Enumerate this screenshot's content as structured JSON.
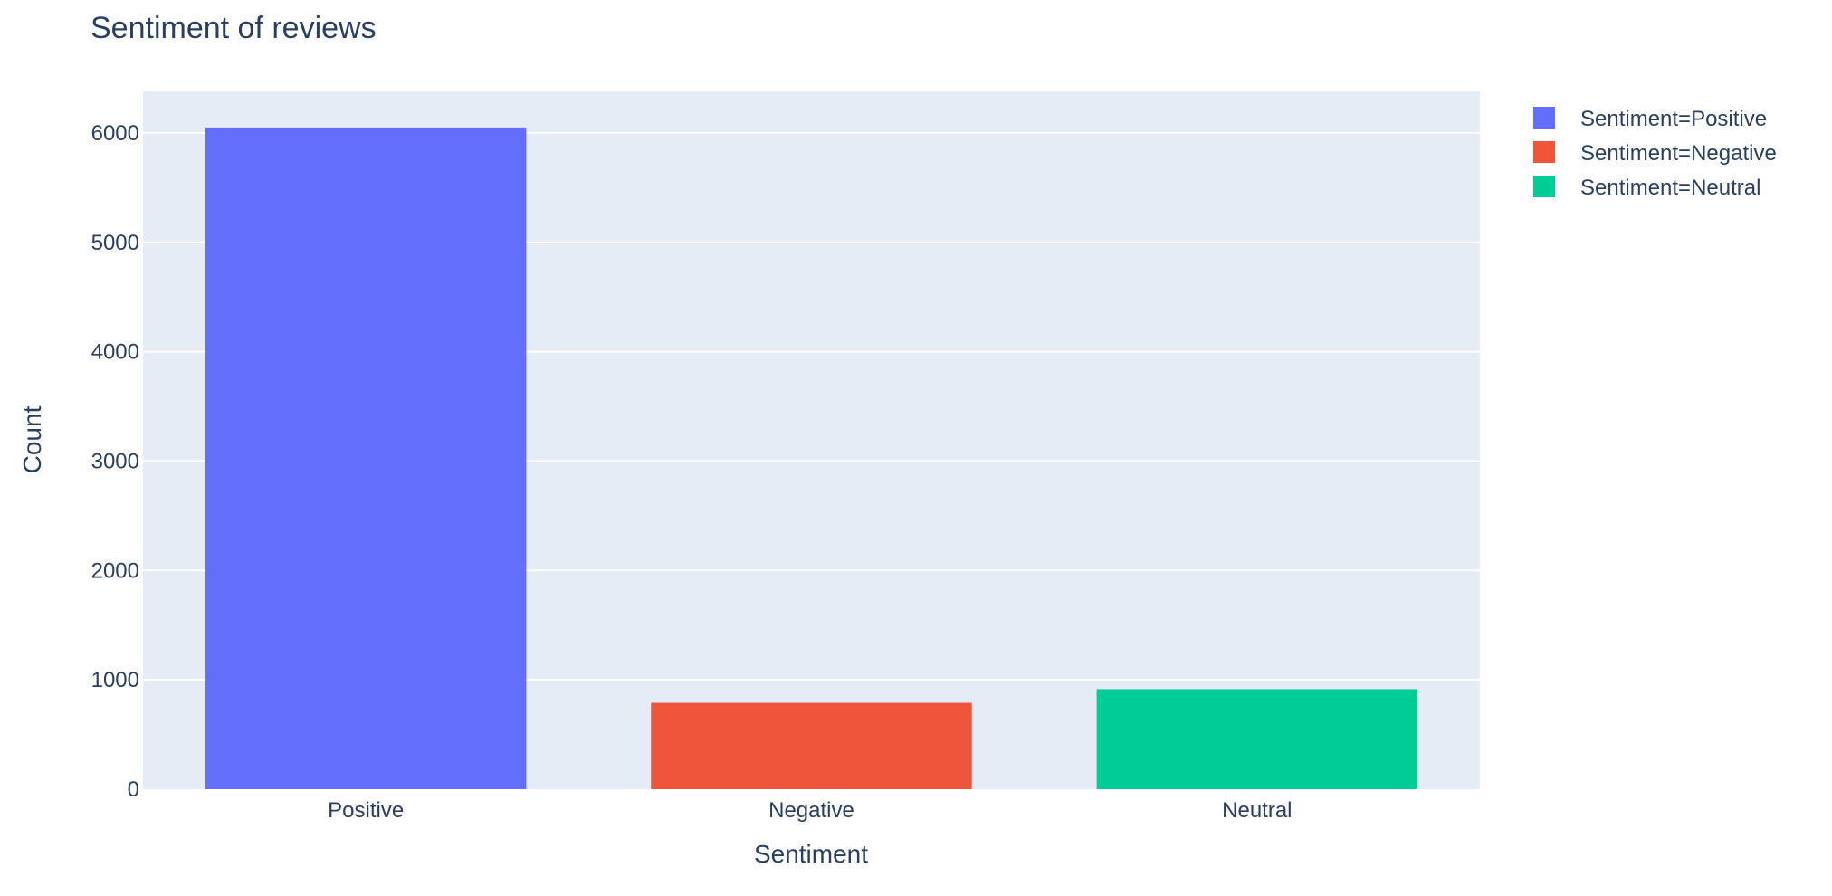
{
  "chart_data": {
    "type": "bar",
    "title": "Sentiment of reviews",
    "xlabel": "Sentiment",
    "ylabel": "Count",
    "categories": [
      "Positive",
      "Negative",
      "Neutral"
    ],
    "series": [
      {
        "name": "Sentiment=Positive",
        "color": "#636efa",
        "category": "Positive",
        "value": 6050
      },
      {
        "name": "Sentiment=Negative",
        "color": "#ef553b",
        "category": "Negative",
        "value": 790
      },
      {
        "name": "Sentiment=Neutral",
        "color": "#00cc96",
        "category": "Neutral",
        "value": 915
      }
    ],
    "ylim": [
      0,
      6380
    ],
    "yticks": [
      0,
      1000,
      2000,
      3000,
      4000,
      5000,
      6000
    ],
    "ytick_labels": [
      "0",
      "1000",
      "2000",
      "3000",
      "4000",
      "5000",
      "6000"
    ],
    "grid": true,
    "legend_position": "top-right",
    "plot_bgcolor": "#e5ecf6"
  }
}
